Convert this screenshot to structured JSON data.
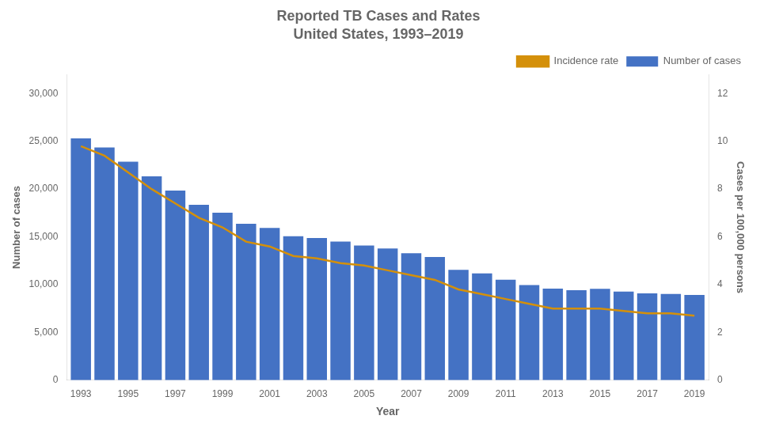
{
  "chart_data": {
    "type": "bar",
    "title": "Reported TB Cases and Rates",
    "subtitle": "United States, 1993–2019",
    "x_label": "Year",
    "y_label": "Number of cases",
    "y2_label": "Cases per 100,000 persons",
    "x": [
      1993,
      1994,
      1995,
      1996,
      1997,
      1998,
      1999,
      2000,
      2001,
      2002,
      2003,
      2004,
      2005,
      2006,
      2007,
      2008,
      2009,
      2010,
      2011,
      2012,
      2013,
      2014,
      2015,
      2016,
      2017,
      2018,
      2019
    ],
    "series": [
      {
        "name": "Number of cases",
        "type": "bar",
        "color": "#4472C4",
        "values": [
          25313,
          24361,
          22860,
          21337,
          19855,
          18361,
          17531,
          16377,
          15945,
          15078,
          14874,
          14517,
          14097,
          13779,
          13293,
          12904,
          11545,
          11182,
          10521,
          9951,
          9588,
          9421,
          9563,
          9272,
          9093,
          9025,
          8916
        ]
      },
      {
        "name": "Incidence rate",
        "type": "line",
        "color": "#D4900A",
        "axis": "y2",
        "values": [
          9.8,
          9.4,
          8.7,
          8.0,
          7.4,
          6.8,
          6.4,
          5.8,
          5.6,
          5.2,
          5.1,
          4.9,
          4.8,
          4.6,
          4.4,
          4.2,
          3.8,
          3.6,
          3.4,
          3.2,
          3.0,
          3.0,
          3.0,
          2.9,
          2.8,
          2.8,
          2.7
        ]
      }
    ],
    "xlim": [
      1992.4,
      2019.6
    ],
    "xticks": [
      1993,
      1995,
      1997,
      1999,
      2001,
      2003,
      2005,
      2007,
      2009,
      2011,
      2013,
      2015,
      2017,
      2019
    ],
    "ylim": [
      0,
      32000
    ],
    "yticks": [
      0,
      {
        "value": 5000,
        "label": "5,000"
      },
      {
        "value": 10000,
        "label": "10,000"
      },
      {
        "value": 15000,
        "label": "15,000"
      },
      {
        "value": 20000,
        "label": "20,000"
      },
      {
        "value": 25000,
        "label": "25,000"
      },
      {
        "value": 30000,
        "label": "30,000"
      }
    ],
    "y2lim": [
      0,
      12.8
    ],
    "y2ticks": [
      0,
      2,
      4,
      6,
      8,
      10,
      12
    ],
    "grid": false,
    "legend": "upper right"
  }
}
